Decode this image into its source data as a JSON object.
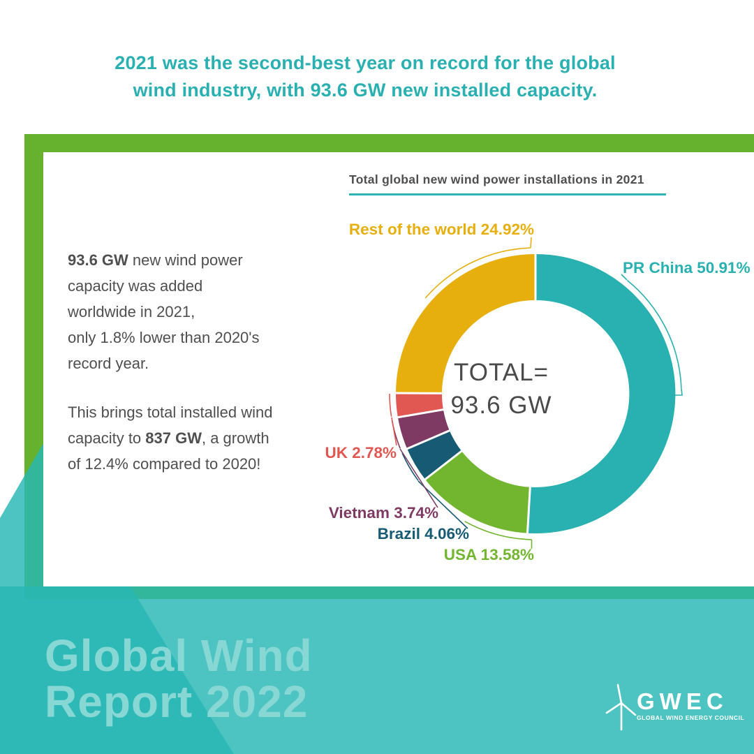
{
  "headline": {
    "line1": "2021 was the second-best year on record for the global",
    "line2": "wind industry, with 93.6 GW new installed capacity."
  },
  "stats": {
    "p1_line1_bold": "93.6 GW",
    "p1_line1_rest": " new wind power",
    "p1_line2": "capacity was added",
    "p1_line3": "worldwide in 2021,",
    "p1_line4": "only 1.8% lower than 2020's",
    "p1_line5": "record year.",
    "p2_line1": "This brings total installed wind",
    "p2_line2_pre": "capacity to ",
    "p2_line2_bold": "837 GW",
    "p2_line2_post": ", a growth",
    "p2_line3": "of 12.4% compared to 2020!"
  },
  "chart_data": {
    "type": "pie",
    "title": "Total global new wind power installations in 2021",
    "total_label": "TOTAL=",
    "total_value_label": "93.6 GW",
    "total_gw": 93.6,
    "start_angle_deg": 0,
    "direction": "clockwise",
    "donut_hole": true,
    "series": [
      {
        "name": "PR China",
        "value": 50.91,
        "label": "PR China 50.91%",
        "color": "#28b1b0"
      },
      {
        "name": "USA",
        "value": 13.58,
        "label": "USA 13.58%",
        "color": "#72b62f"
      },
      {
        "name": "Brazil",
        "value": 4.06,
        "label": "Brazil 4.06%",
        "color": "#175a73"
      },
      {
        "name": "Vietnam",
        "value": 3.74,
        "label": "Vietnam 3.74%",
        "color": "#7e3a63"
      },
      {
        "name": "UK",
        "value": 2.78,
        "label": "UK 2.78%",
        "color": "#e15752"
      },
      {
        "name": "Rest of the world",
        "value": 24.92,
        "label": "Rest of the world 24.92%",
        "color": "#e7af0e"
      }
    ]
  },
  "footer": {
    "title_line1": "Global Wind",
    "title_line2": "Report 2022",
    "logo_text": "GWEC",
    "logo_subtext": "GLOBAL WIND ENERGY COUNCIL"
  },
  "colors": {
    "frame_green": "#66b22e",
    "band_teal": "rgba(39,183,181,0.82)",
    "headline_teal": "#2bb0b1",
    "underline_teal": "#2cb4b4",
    "body_text": "#4f4f4f",
    "center_text": "#4a4a4a",
    "footer_text": "#87d7d4",
    "logo_white": "#ffffff",
    "separator_white": "#ffffff"
  }
}
